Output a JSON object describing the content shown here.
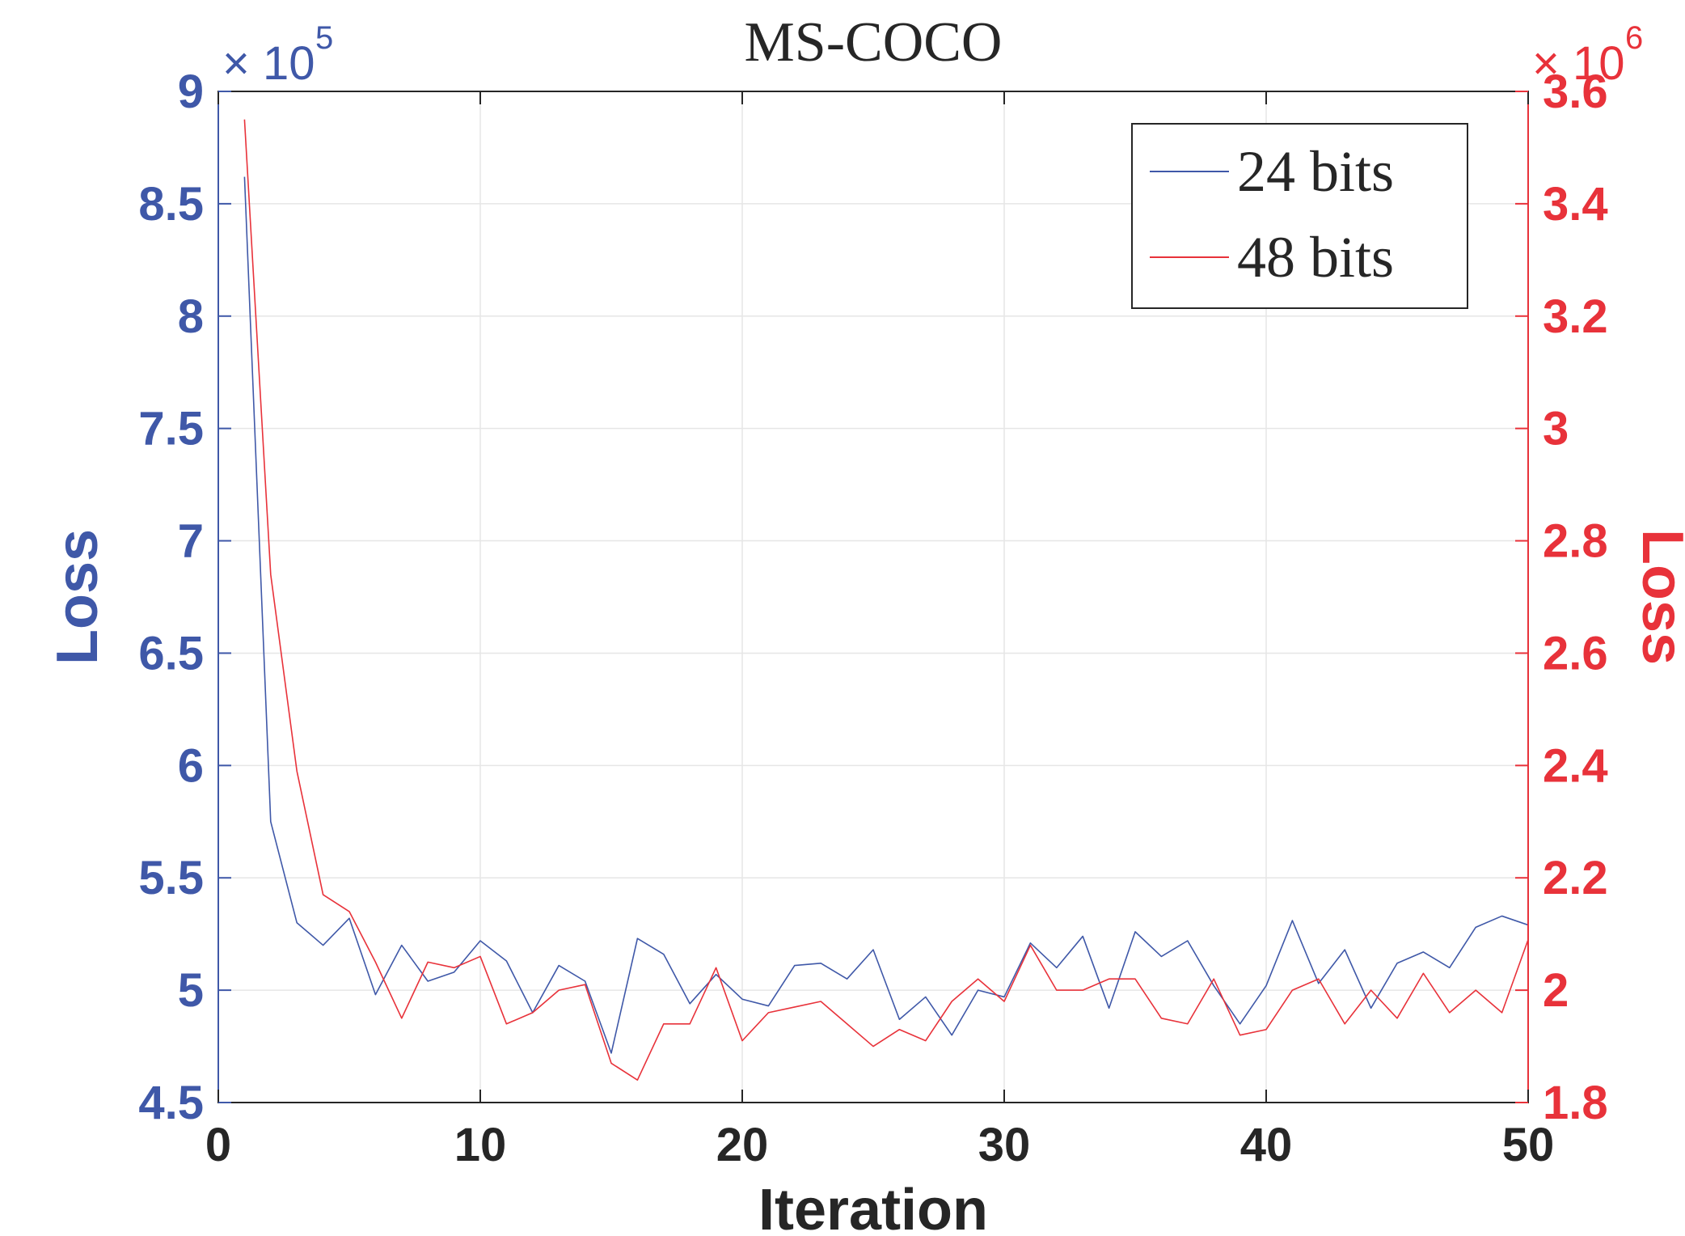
{
  "chart_data": {
    "type": "line",
    "title": "MS-COCO",
    "xlabel": "Iteration",
    "ylabel_left": "Loss",
    "ylabel_right": "Loss",
    "xlim": [
      0,
      50
    ],
    "ylim_left": [
      4.5,
      9
    ],
    "ylim_right": [
      1.8,
      3.6
    ],
    "y_multiplier_left": "×10^5",
    "y_multiplier_left_base": "10",
    "y_multiplier_left_exp": "5",
    "y_multiplier_right": "×10^6",
    "y_multiplier_right_base": "10",
    "y_multiplier_right_exp": "6",
    "x_ticks": [
      "0",
      "10",
      "20",
      "30",
      "40",
      "50"
    ],
    "y_ticks_left": [
      "4.5",
      "5",
      "5.5",
      "6",
      "6.5",
      "7",
      "7.5",
      "8",
      "8.5",
      "9"
    ],
    "y_ticks_right": [
      "1.8",
      "2",
      "2.2",
      "2.4",
      "2.6",
      "2.8",
      "3",
      "3.2",
      "3.4",
      "3.6"
    ],
    "grid": true,
    "legend_position": "top-right",
    "x": [
      1,
      2,
      3,
      4,
      5,
      6,
      7,
      8,
      9,
      10,
      11,
      12,
      13,
      14,
      15,
      16,
      17,
      18,
      19,
      20,
      21,
      22,
      23,
      24,
      25,
      26,
      27,
      28,
      29,
      30,
      31,
      32,
      33,
      34,
      35,
      36,
      37,
      38,
      39,
      40,
      41,
      42,
      43,
      44,
      45,
      46,
      47,
      48,
      49,
      50
    ],
    "series": [
      {
        "name": "24 bits",
        "axis": "left",
        "color": "#3f58a8",
        "values": [
          8.62,
          5.75,
          5.3,
          5.2,
          5.32,
          4.98,
          5.2,
          5.04,
          5.08,
          5.22,
          5.13,
          4.9,
          5.11,
          5.04,
          4.72,
          5.23,
          5.16,
          4.94,
          5.07,
          4.96,
          4.93,
          5.11,
          5.12,
          5.05,
          5.18,
          4.87,
          4.97,
          4.8,
          5.0,
          4.97,
          5.21,
          5.1,
          5.24,
          4.92,
          5.26,
          5.15,
          5.22,
          5.02,
          4.85,
          5.02,
          5.31,
          5.03,
          5.18,
          4.92,
          5.12,
          5.17,
          5.1,
          5.28,
          5.33,
          5.29
        ]
      },
      {
        "name": "48 bits",
        "axis": "right",
        "color": "#e8323a",
        "values": [
          3.55,
          2.74,
          2.39,
          2.17,
          2.14,
          2.05,
          1.95,
          2.05,
          2.04,
          2.06,
          1.94,
          1.96,
          2.0,
          2.01,
          1.87,
          1.84,
          1.94,
          1.94,
          2.04,
          1.91,
          1.96,
          1.97,
          1.98,
          1.94,
          1.9,
          1.93,
          1.91,
          1.98,
          2.02,
          1.98,
          2.08,
          2.0,
          2.0,
          2.02,
          2.02,
          1.95,
          1.94,
          2.02,
          1.92,
          1.93,
          2.0,
          2.02,
          1.94,
          2.0,
          1.95,
          2.03,
          1.96,
          2.0,
          1.96,
          2.09
        ]
      }
    ]
  }
}
